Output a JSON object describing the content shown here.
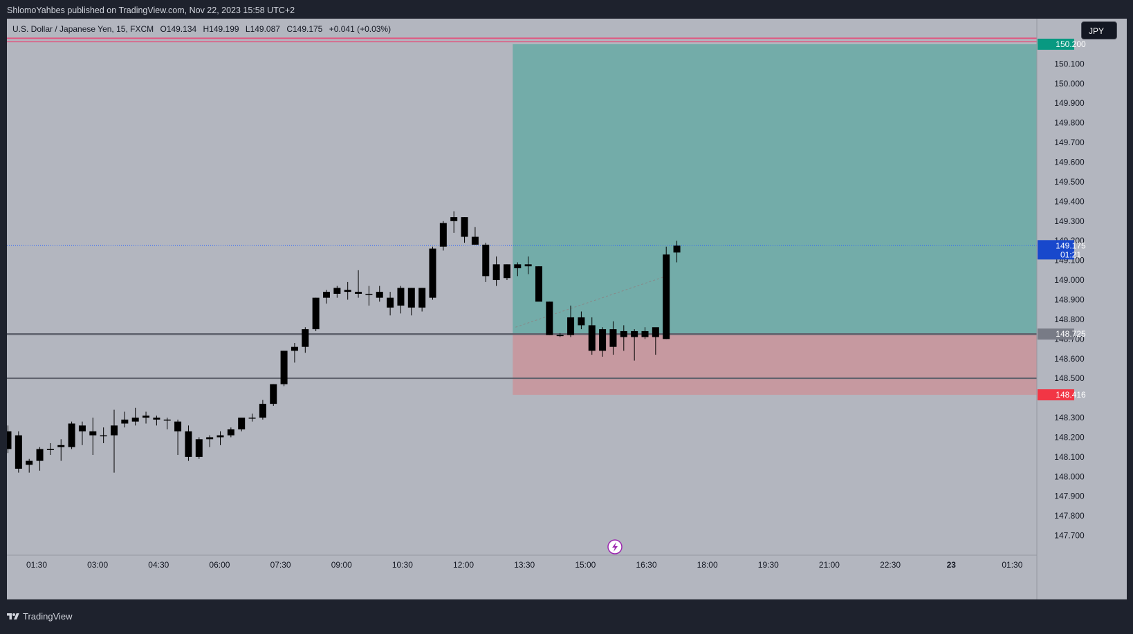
{
  "header": {
    "publish_info": "ShlomoYahbes published on TradingView.com, Nov 22, 2023 15:58 UTC+2"
  },
  "symbol": {
    "name": "U.S. Dollar / Japanese Yen, 15, FXCM",
    "open": "O149.134",
    "high": "H149.199",
    "low": "L149.087",
    "close": "C149.175",
    "change": "+0.041 (+0.03%)"
  },
  "currency_button": "JPY",
  "footer": {
    "brand": "TradingView"
  },
  "colors": {
    "background": "#b3b6bf",
    "up_candle": "#000000",
    "down_candle": "#000000",
    "profit_zone": "#5ea8a1",
    "loss_zone": "#c9949a",
    "price_badge": "#1848cc",
    "stop_badge": "#f23645",
    "target_badge": "#089981"
  },
  "chart_data": {
    "type": "candlestick",
    "y_axis": {
      "ticks": [
        "150.100",
        "150.000",
        "149.900",
        "149.800",
        "149.700",
        "149.600",
        "149.500",
        "149.400",
        "149.300",
        "149.200",
        "149.100",
        "149.000",
        "148.900",
        "148.800",
        "148.700",
        "148.600",
        "148.500",
        "148.300",
        "148.200",
        "148.100",
        "148.000",
        "147.900",
        "147.800",
        "147.700"
      ],
      "ylim": [
        147.6,
        150.33
      ]
    },
    "x_axis": {
      "ticks": [
        "01:30",
        "03:00",
        "04:30",
        "06:00",
        "07:30",
        "09:00",
        "10:30",
        "12:00",
        "13:30",
        "15:00",
        "16:30",
        "18:00",
        "19:30",
        "21:00",
        "22:30",
        "23",
        "01:30"
      ],
      "bold_ticks": [
        "23"
      ]
    },
    "price_labels": {
      "last_price": "149.175",
      "countdown": "01:21",
      "entry": "148.725",
      "stop": "148.416",
      "target_partial": "150.200"
    },
    "position_tool": {
      "entry": 148.725,
      "stop": 148.416,
      "target": 150.2,
      "start_bar": 48
    },
    "horizontal_lines": [
      148.725,
      148.5,
      150.23
    ],
    "candles": [
      [
        148.23,
        148.26,
        148.12,
        148.14
      ],
      [
        148.21,
        148.23,
        148.02,
        148.04
      ],
      [
        148.06,
        148.09,
        148.02,
        148.08
      ],
      [
        148.08,
        148.15,
        148.03,
        148.14
      ],
      [
        148.14,
        148.17,
        148.11,
        148.14
      ],
      [
        148.15,
        148.19,
        148.08,
        148.16
      ],
      [
        148.15,
        148.28,
        148.14,
        148.27
      ],
      [
        148.26,
        148.28,
        148.16,
        148.23
      ],
      [
        148.23,
        148.3,
        148.11,
        148.21
      ],
      [
        148.21,
        148.25,
        148.17,
        148.21
      ],
      [
        148.21,
        148.34,
        148.02,
        148.26
      ],
      [
        148.27,
        148.33,
        148.25,
        148.29
      ],
      [
        148.28,
        148.35,
        148.26,
        148.3
      ],
      [
        148.31,
        148.33,
        148.27,
        148.3
      ],
      [
        148.3,
        148.31,
        148.26,
        148.29
      ],
      [
        148.29,
        148.3,
        148.24,
        148.29
      ],
      [
        148.28,
        148.29,
        148.11,
        148.23
      ],
      [
        148.23,
        148.26,
        148.08,
        148.1
      ],
      [
        148.1,
        148.2,
        148.09,
        148.19
      ],
      [
        148.19,
        148.21,
        148.15,
        148.2
      ],
      [
        148.2,
        148.23,
        148.16,
        148.21
      ],
      [
        148.21,
        148.25,
        148.2,
        148.24
      ],
      [
        148.24,
        148.3,
        148.23,
        148.3
      ],
      [
        148.3,
        148.32,
        148.28,
        148.3
      ],
      [
        148.3,
        148.39,
        148.29,
        148.37
      ],
      [
        148.37,
        148.47,
        148.36,
        148.47
      ],
      [
        148.47,
        148.64,
        148.46,
        148.64
      ],
      [
        148.64,
        148.68,
        148.58,
        148.66
      ],
      [
        148.66,
        148.76,
        148.63,
        148.75
      ],
      [
        148.75,
        148.91,
        148.74,
        148.91
      ],
      [
        148.91,
        148.95,
        148.88,
        148.94
      ],
      [
        148.93,
        148.97,
        148.91,
        148.96
      ],
      [
        148.95,
        148.99,
        148.9,
        148.94
      ],
      [
        148.94,
        149.05,
        148.91,
        148.93
      ],
      [
        148.93,
        148.97,
        148.87,
        148.93
      ],
      [
        148.94,
        148.97,
        148.89,
        148.91
      ],
      [
        148.91,
        148.94,
        148.82,
        148.86
      ],
      [
        148.87,
        148.97,
        148.83,
        148.96
      ],
      [
        148.96,
        148.96,
        148.82,
        148.86
      ],
      [
        148.86,
        148.96,
        148.84,
        148.96
      ],
      [
        148.91,
        149.17,
        148.9,
        149.16
      ],
      [
        149.17,
        149.3,
        149.15,
        149.29
      ],
      [
        149.3,
        149.35,
        149.24,
        149.32
      ],
      [
        149.32,
        149.32,
        149.19,
        149.22
      ],
      [
        149.22,
        149.27,
        149.18,
        149.18
      ],
      [
        149.18,
        149.19,
        148.99,
        149.02
      ],
      [
        149.08,
        149.12,
        148.97,
        149.0
      ],
      [
        149.01,
        149.08,
        149.0,
        149.08
      ],
      [
        149.08,
        149.09,
        149.02,
        149.06
      ],
      [
        149.08,
        149.12,
        149.03,
        149.07
      ],
      [
        149.07,
        149.07,
        148.9,
        148.89
      ],
      [
        148.89,
        148.89,
        148.72,
        148.72
      ],
      [
        148.72,
        148.73,
        148.71,
        148.72
      ],
      [
        148.72,
        148.87,
        148.71,
        148.81
      ],
      [
        148.81,
        148.84,
        148.75,
        148.77
      ],
      [
        148.77,
        148.81,
        148.62,
        148.64
      ],
      [
        148.64,
        148.76,
        148.61,
        148.75
      ],
      [
        148.75,
        148.79,
        148.62,
        148.66
      ],
      [
        148.71,
        148.77,
        148.64,
        148.74
      ],
      [
        148.74,
        148.75,
        148.59,
        148.71
      ],
      [
        148.71,
        148.76,
        148.7,
        148.74
      ],
      [
        148.71,
        148.74,
        148.62,
        148.76
      ],
      [
        148.7,
        149.17,
        148.7,
        149.13
      ],
      [
        149.14,
        149.2,
        149.09,
        149.175
      ]
    ]
  }
}
